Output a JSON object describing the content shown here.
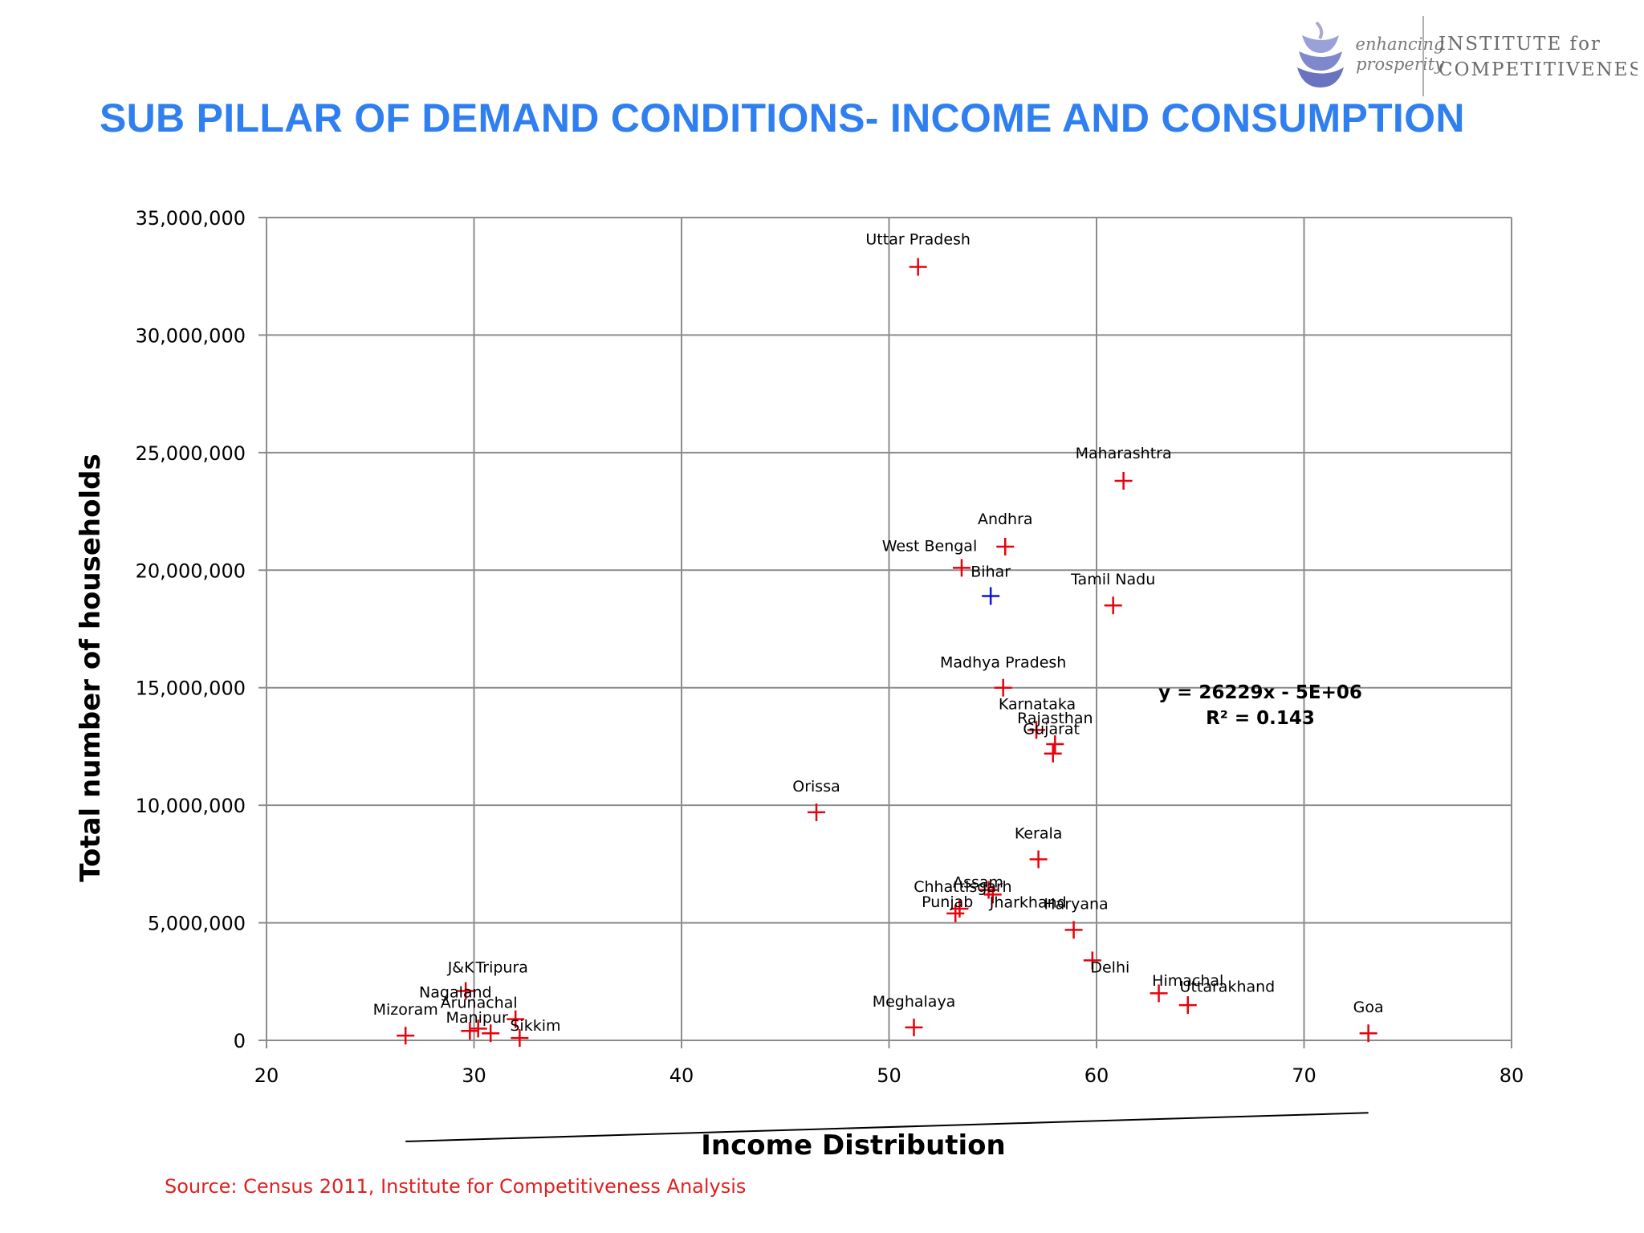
{
  "slide_title": "SUB PILLAR OF DEMAND CONDITIONS- INCOME AND CONSUMPTION",
  "logo": {
    "tagline_1": "enhancing",
    "tagline_2": "prosperity",
    "name_line_1": "INSTITUTE for",
    "name_line_2": "COMPETITIVENESS"
  },
  "source": "Source: Census 2011, Institute for Competitiveness Analysis",
  "colors": {
    "title": "#2f7ff0",
    "point": "#e8000b",
    "highlight": "#1010e0",
    "source": "#e02020",
    "grid": "#8c8c8c"
  },
  "chart_data": {
    "type": "scatter",
    "xlabel": "Income Distribution",
    "ylabel": "Total number of households",
    "xlim": [
      20,
      80
    ],
    "ylim": [
      0,
      35000000
    ],
    "x_ticks": [
      {
        "v": 20,
        "label": "20"
      },
      {
        "v": 30,
        "label": "30"
      },
      {
        "v": 40,
        "label": "40"
      },
      {
        "v": 50,
        "label": "50"
      },
      {
        "v": 60,
        "label": "60"
      },
      {
        "v": 70,
        "label": "70"
      },
      {
        "v": 80,
        "label": "80"
      }
    ],
    "y_ticks": [
      {
        "v": 0,
        "label": "0"
      },
      {
        "v": 5000000,
        "label": "5,000,000"
      },
      {
        "v": 10000000,
        "label": "10,000,000"
      },
      {
        "v": 15000000,
        "label": "15,000,000"
      },
      {
        "v": 20000000,
        "label": "20,000,000"
      },
      {
        "v": 25000000,
        "label": "25,000,000"
      },
      {
        "v": 30000000,
        "label": "30,000,000"
      },
      {
        "v": 35000000,
        "label": "35,000,000"
      }
    ],
    "grid": true,
    "points": [
      {
        "label": "Uttar Pradesh",
        "x": 51.4,
        "y": 32900000
      },
      {
        "label": "Maharashtra",
        "x": 61.3,
        "y": 23800000
      },
      {
        "label": "Andhra",
        "x": 55.6,
        "y": 21000000
      },
      {
        "label": "West Bengal",
        "x": 53.5,
        "y": 20100000
      },
      {
        "label": "Bihar",
        "x": 54.9,
        "y": 18900000,
        "highlight": true
      },
      {
        "label": "Tamil Nadu",
        "x": 60.8,
        "y": 18500000
      },
      {
        "label": "Madhya Pradesh",
        "x": 55.5,
        "y": 15000000
      },
      {
        "label": "Karnataka",
        "x": 57.1,
        "y": 13200000
      },
      {
        "label": "Rajasthan",
        "x": 58.0,
        "y": 12600000
      },
      {
        "label": "Gujarat",
        "x": 57.9,
        "y": 12200000
      },
      {
        "label": "Orissa",
        "x": 46.5,
        "y": 9700000
      },
      {
        "label": "Kerala",
        "x": 57.2,
        "y": 7700000
      },
      {
        "label": "Assam",
        "x": 54.8,
        "y": 6400000
      },
      {
        "label": "Jharkhand",
        "x": 55.0,
        "y": 6200000
      },
      {
        "label": "Chhattisgarh",
        "x": 53.4,
        "y": 5600000
      },
      {
        "label": "Punjab",
        "x": 53.2,
        "y": 5400000
      },
      {
        "label": "Haryana",
        "x": 58.9,
        "y": 4700000
      },
      {
        "label": "Delhi",
        "x": 59.8,
        "y": 3400000
      },
      {
        "label": "Uttarakhand",
        "x": 63.0,
        "y": 2000000
      },
      {
        "label": "Himachal",
        "x": 64.4,
        "y": 1500000
      },
      {
        "label": "Goa",
        "x": 73.1,
        "y": 300000
      },
      {
        "label": "Meghalaya",
        "x": 51.2,
        "y": 550000
      },
      {
        "label": "J&K",
        "x": 29.6,
        "y": 2100000
      },
      {
        "label": "Nagaland",
        "x": 29.8,
        "y": 400000
      },
      {
        "label": "Tripura",
        "x": 32.0,
        "y": 900000
      },
      {
        "label": "Arunachal",
        "x": 30.2,
        "y": 500000
      },
      {
        "label": "Manipur",
        "x": 30.8,
        "y": 300000
      },
      {
        "label": "Sikkim",
        "x": 32.2,
        "y": 100000
      },
      {
        "label": "Mizoram",
        "x": 26.7,
        "y": 200000
      }
    ],
    "trendline": {
      "equation": "y = 26229x - 5E+06",
      "r_squared": "R² = 0.143",
      "x_start": 26.7,
      "x_end": 73.1,
      "slope": 26229,
      "intercept": -5000000
    }
  }
}
